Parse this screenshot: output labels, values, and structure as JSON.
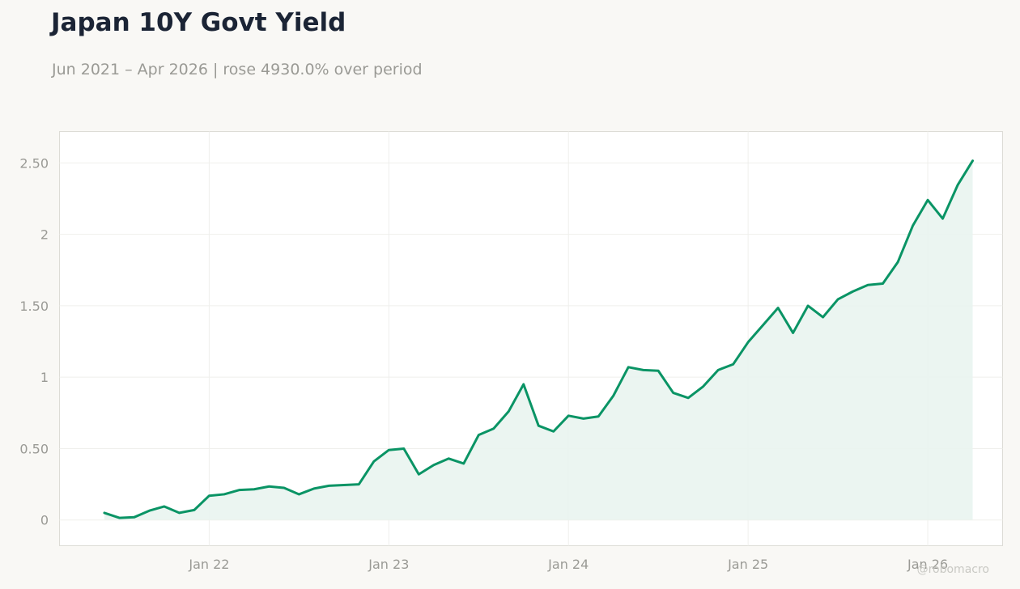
{
  "header": {
    "title": "Japan 10Y Govt Yield",
    "subtitle": "Jun 2021 – Apr 2026 | rose 4930.0% over period"
  },
  "watermark": "@robomacro",
  "colors": {
    "line": "#0a9465",
    "fill": "#e9f4ef",
    "background": "#f9f8f5",
    "plot_background": "#ffffff",
    "grid": "#efefec"
  },
  "chart_data": {
    "type": "area",
    "x_unit": "month",
    "x": [
      "2021-06",
      "2021-07",
      "2021-08",
      "2021-09",
      "2021-10",
      "2021-11",
      "2021-12",
      "2022-01",
      "2022-02",
      "2022-03",
      "2022-04",
      "2022-05",
      "2022-06",
      "2022-07",
      "2022-08",
      "2022-09",
      "2022-10",
      "2022-11",
      "2022-12",
      "2023-01",
      "2023-02",
      "2023-03",
      "2023-04",
      "2023-05",
      "2023-06",
      "2023-07",
      "2023-08",
      "2023-09",
      "2023-10",
      "2023-11",
      "2023-12",
      "2024-01",
      "2024-02",
      "2024-03",
      "2024-04",
      "2024-05",
      "2024-06",
      "2024-07",
      "2024-08",
      "2024-09",
      "2024-10",
      "2024-11",
      "2024-12",
      "2025-01",
      "2025-02",
      "2025-03",
      "2025-04",
      "2025-05",
      "2025-06",
      "2025-07",
      "2025-08",
      "2025-09",
      "2025-10",
      "2025-11",
      "2025-12",
      "2026-01",
      "2026-02",
      "2026-03",
      "2026-04"
    ],
    "series": [
      {
        "values": [
          0.05,
          0.015,
          0.02,
          0.065,
          0.095,
          0.05,
          0.07,
          0.17,
          0.18,
          0.21,
          0.215,
          0.235,
          0.225,
          0.18,
          0.22,
          0.24,
          0.245,
          0.25,
          0.41,
          0.49,
          0.5,
          0.32,
          0.385,
          0.43,
          0.395,
          0.595,
          0.64,
          0.76,
          0.95,
          0.66,
          0.62,
          0.73,
          0.71,
          0.725,
          0.87,
          1.07,
          1.05,
          1.045,
          0.89,
          0.855,
          0.935,
          1.05,
          1.09,
          1.245,
          1.365,
          1.485,
          1.31,
          1.5,
          1.42,
          1.545,
          1.6,
          1.645,
          1.655,
          1.805,
          2.06,
          2.24,
          2.11,
          2.345,
          2.515
        ]
      }
    ],
    "xlim": [
      "2021-03",
      "2026-06"
    ],
    "ylim": [
      -0.18,
      2.72
    ],
    "x_ticks": [
      {
        "value": "2022-01",
        "label": "Jan 22"
      },
      {
        "value": "2023-01",
        "label": "Jan 23"
      },
      {
        "value": "2024-01",
        "label": "Jan 24"
      },
      {
        "value": "2025-01",
        "label": "Jan 25"
      },
      {
        "value": "2026-01",
        "label": "Jan 26"
      }
    ],
    "y_ticks": [
      {
        "value": 0,
        "label": "0"
      },
      {
        "value": 0.5,
        "label": "0.50"
      },
      {
        "value": 1,
        "label": "1"
      },
      {
        "value": 1.5,
        "label": "1.50"
      },
      {
        "value": 2,
        "label": "2"
      },
      {
        "value": 2.5,
        "label": "2.50"
      }
    ],
    "grid": true,
    "legend": "none"
  }
}
